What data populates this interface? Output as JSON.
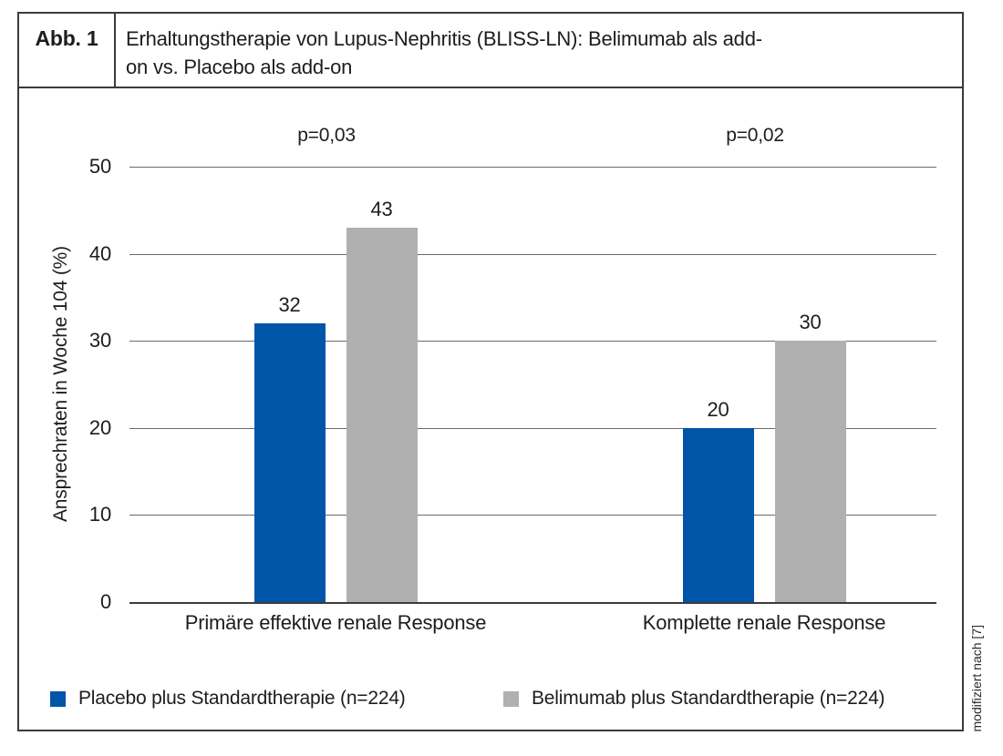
{
  "figure": {
    "label": "Abb. 1",
    "title": "Erhaltungstherapie von Lupus-Nephritis (BLISS-LN): Belimumab als add-on vs. Placebo als add-on",
    "source_note": "modifiziert nach [7]"
  },
  "chart_data": {
    "type": "bar",
    "title": "Erhaltungstherapie von Lupus-Nephritis (BLISS-LN): Belimumab als add-on vs. Placebo als add-on",
    "xlabel": "",
    "ylabel": "Ansprechraten in Woche 104 (%)",
    "ylim": [
      0,
      50
    ],
    "yticks": [
      0,
      10,
      20,
      30,
      40,
      50
    ],
    "grid": true,
    "legend_position": "bottom",
    "categories": [
      "Primäre effektive renale Response",
      "Komplette renale Response"
    ],
    "series": [
      {
        "name": "Placebo plus Standardtherapie (n=224)",
        "color": "#0055A8",
        "values": [
          32,
          20
        ]
      },
      {
        "name": "Belimumab plus Standardtherapie (n=224)",
        "color": "#B0B0B0",
        "values": [
          43,
          30
        ]
      }
    ],
    "p_values": [
      "p=0,03",
      "p=0,02"
    ]
  },
  "colors": {
    "placebo_blue": "#0055A8",
    "belimumab_gray": "#B0B0B0",
    "frame_border": "#3B3B3B",
    "gridline": "#6A6A6A",
    "text": "#1D1D1D"
  }
}
